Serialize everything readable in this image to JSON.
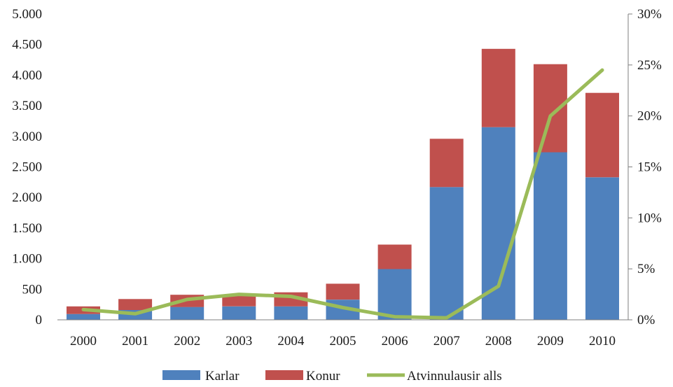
{
  "chart_data": {
    "type": "bar",
    "stacked": true,
    "categories": [
      "2000",
      "2001",
      "2002",
      "2003",
      "2004",
      "2005",
      "2006",
      "2007",
      "2008",
      "2009",
      "2010"
    ],
    "series": [
      {
        "name": "Karlar",
        "type": "bar",
        "axis": "left",
        "color": "#4f81bd",
        "values": [
          95,
          160,
          210,
          220,
          220,
          330,
          830,
          2170,
          3150,
          2740,
          2330
        ]
      },
      {
        "name": "Konur",
        "type": "bar",
        "axis": "left",
        "color": "#c0504d",
        "values": [
          125,
          180,
          200,
          180,
          230,
          260,
          400,
          790,
          1280,
          1440,
          1380
        ]
      },
      {
        "name": "Atvinnulausir alls",
        "type": "line",
        "axis": "right",
        "color": "#9bbb59",
        "values": [
          0.01,
          0.006,
          0.02,
          0.025,
          0.023,
          0.012,
          0.003,
          0.002,
          0.033,
          0.2,
          0.245
        ]
      }
    ],
    "y_left": {
      "ylim": [
        0,
        5000
      ],
      "ticks": [
        0,
        500,
        1000,
        1500,
        2000,
        2500,
        3000,
        3500,
        4000,
        4500,
        5000
      ],
      "tick_labels": [
        "0",
        "500",
        "1.000",
        "1.500",
        "2.000",
        "2.500",
        "3.000",
        "3.500",
        "4.000",
        "4.500",
        "5.000"
      ]
    },
    "y_right": {
      "ylim": [
        0,
        0.3
      ],
      "ticks": [
        0,
        0.05,
        0.1,
        0.15,
        0.2,
        0.25,
        0.3
      ],
      "tick_labels": [
        "0%",
        "5%",
        "10%",
        "15%",
        "20%",
        "25%",
        "30%"
      ]
    },
    "grid": false,
    "legend_position": "bottom"
  }
}
